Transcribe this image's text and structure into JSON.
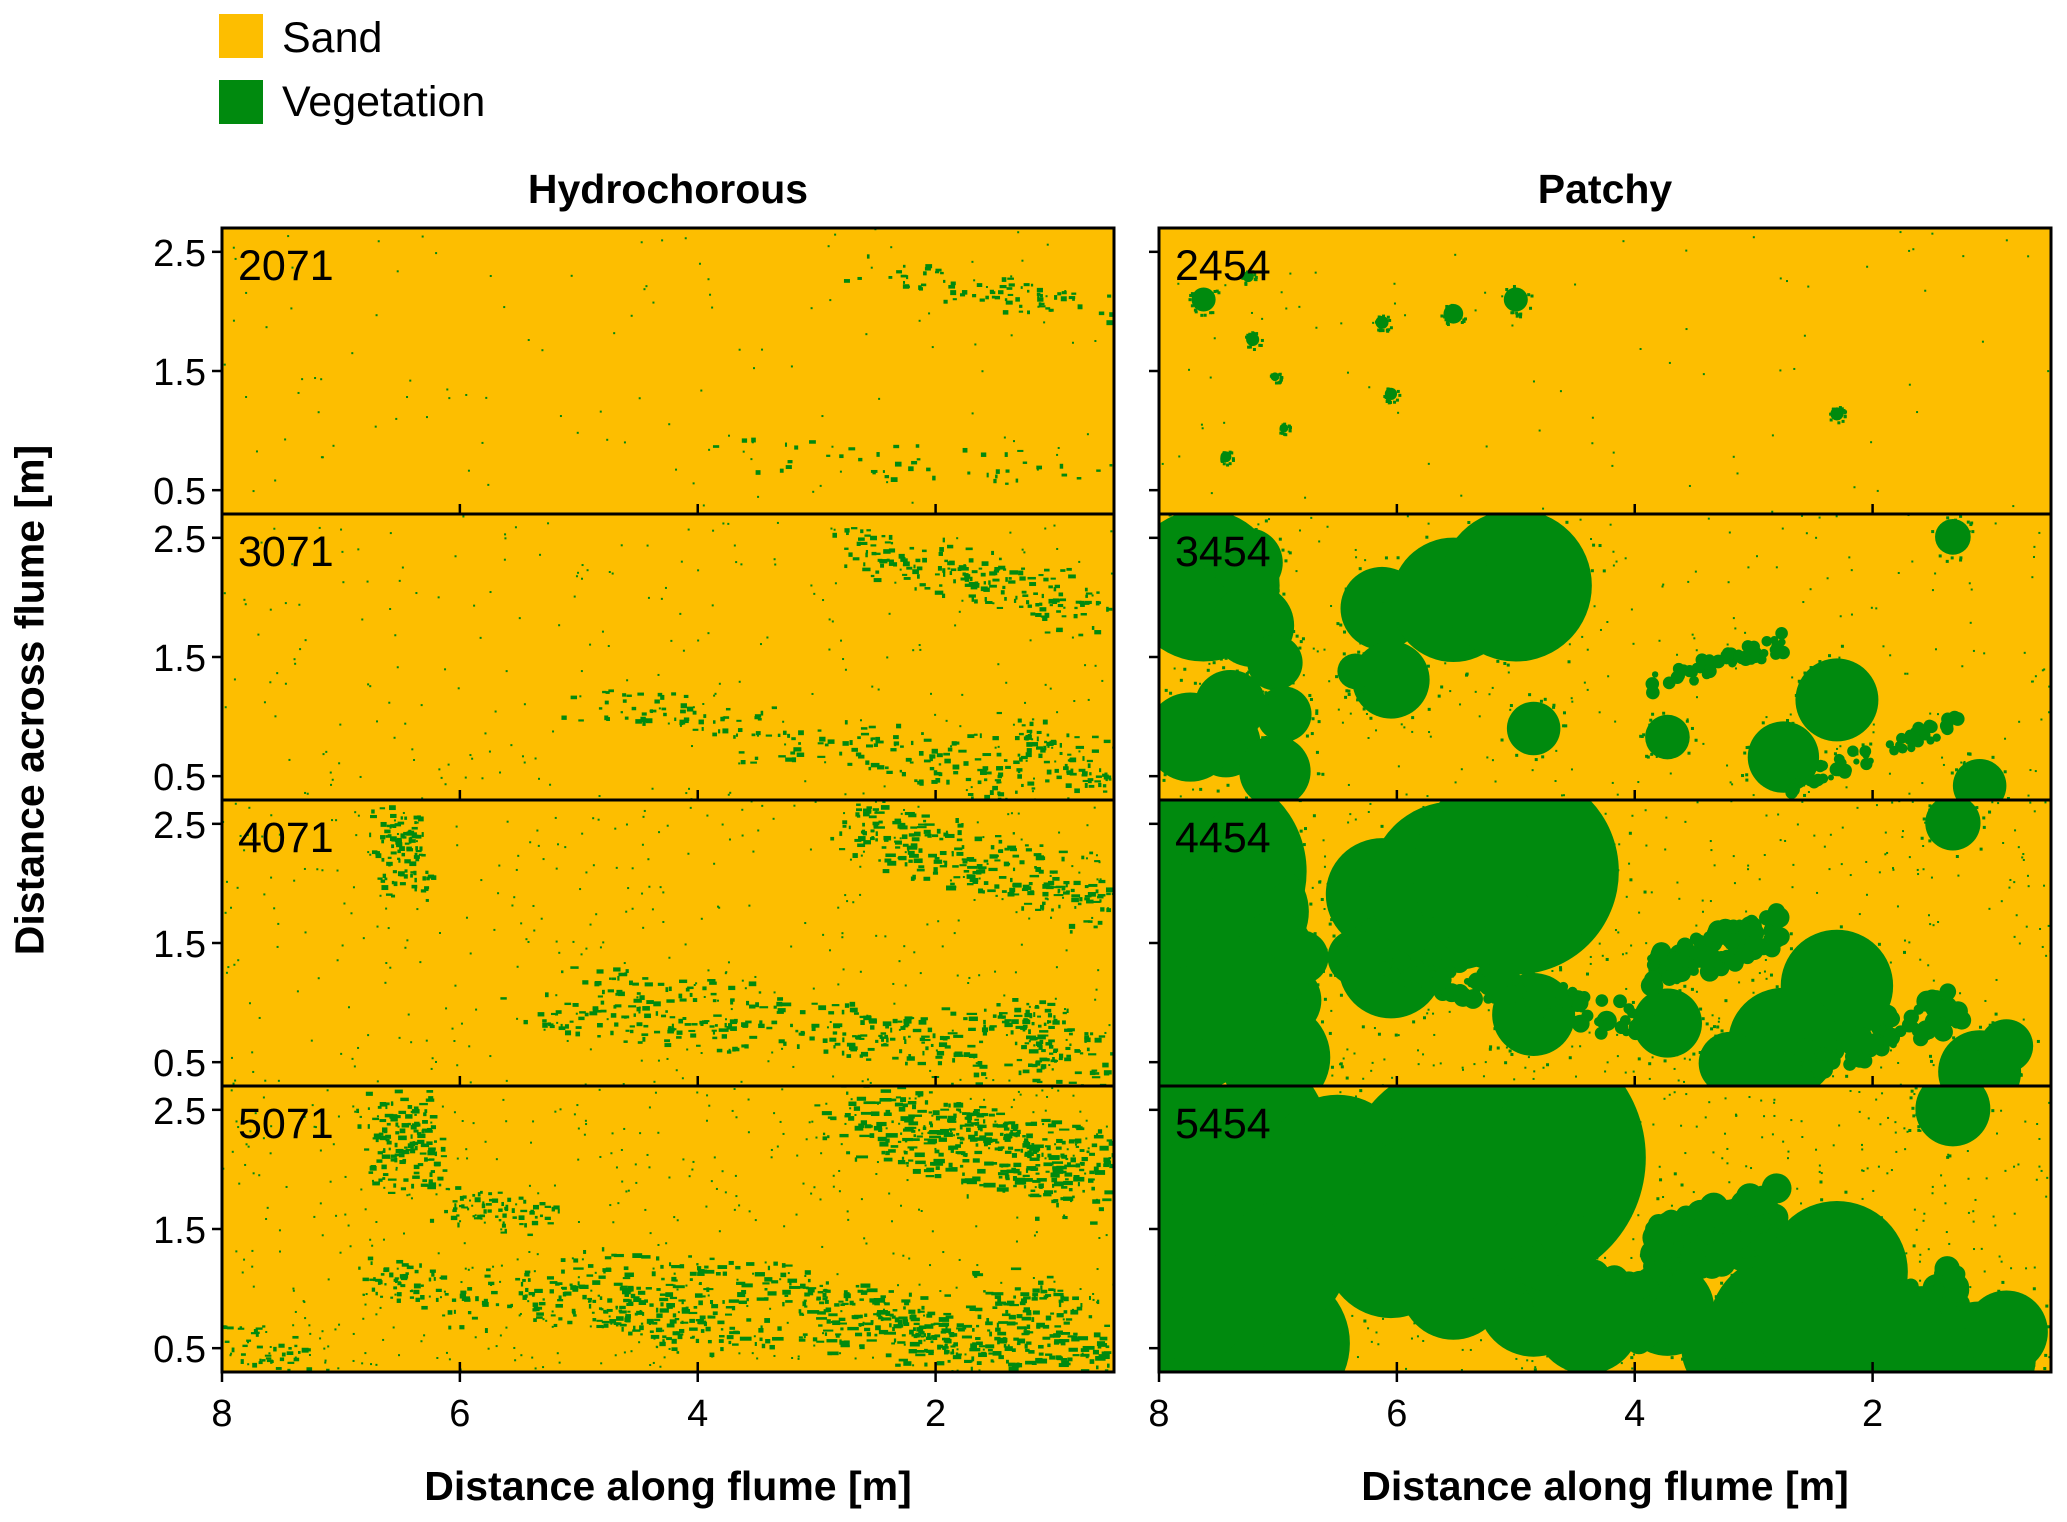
{
  "legend": {
    "items": [
      {
        "label": "Sand",
        "color": "#FDBE00"
      },
      {
        "label": "Vegetation",
        "color": "#008A0E"
      }
    ]
  },
  "chart_data": {
    "type": "heatmap",
    "columns": [
      {
        "title": "Hydrochorous",
        "panels": [
          "2071",
          "3071",
          "4071",
          "5071"
        ]
      },
      {
        "title": "Patchy",
        "panels": [
          "2454",
          "3454",
          "4454",
          "5454"
        ]
      }
    ],
    "xlabel": "Distance along flume [m]",
    "ylabel": "Distance across flume [m]",
    "x_ticks": [
      "8",
      "6",
      "4",
      "2"
    ],
    "x_tick_values": [
      8,
      6,
      4,
      2
    ],
    "y_ticks": [
      "2.5",
      "1.5",
      "0.5"
    ],
    "y_tick_values": [
      2.5,
      1.5,
      0.5
    ],
    "xlim": [
      8,
      0.5
    ],
    "ylim": [
      0.3,
      2.7
    ],
    "x_reversed": true,
    "colors": {
      "sand": "#FDBE00",
      "vegetation": "#008A0E"
    }
  }
}
